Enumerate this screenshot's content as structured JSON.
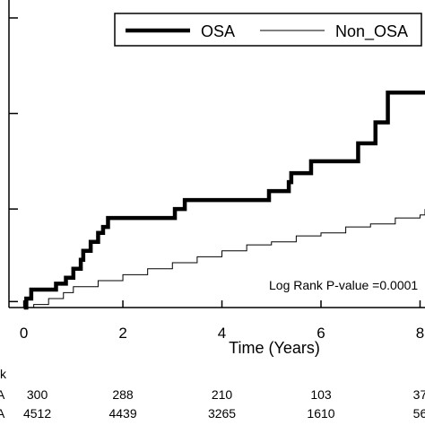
{
  "chart_data": {
    "type": "line",
    "title": "",
    "xlabel": "Time (Years)",
    "ylabel": "",
    "xlim": [
      -0.3,
      8.1
    ],
    "xticks": [
      0,
      2,
      4,
      6,
      8
    ],
    "ylim": [
      0,
      1
    ],
    "grid": false,
    "legend_position": "top-right",
    "annotation": "Log Rank P-value =0.0001",
    "series": [
      {
        "name": "OSA",
        "line_style": "thick",
        "color": "#000000",
        "steps": [
          [
            0.0,
            0.0
          ],
          [
            0.05,
            0.03
          ],
          [
            0.15,
            0.06
          ],
          [
            0.6,
            0.06
          ],
          [
            0.65,
            0.08
          ],
          [
            0.8,
            0.08
          ],
          [
            0.85,
            0.1
          ],
          [
            0.95,
            0.1
          ],
          [
            1.0,
            0.13
          ],
          [
            1.1,
            0.13
          ],
          [
            1.15,
            0.16
          ],
          [
            1.2,
            0.19
          ],
          [
            1.3,
            0.19
          ],
          [
            1.35,
            0.22
          ],
          [
            1.45,
            0.22
          ],
          [
            1.5,
            0.25
          ],
          [
            1.55,
            0.25
          ],
          [
            1.6,
            0.27
          ],
          [
            1.7,
            0.3
          ],
          [
            3.0,
            0.3
          ],
          [
            3.05,
            0.33
          ],
          [
            3.2,
            0.33
          ],
          [
            3.25,
            0.36
          ],
          [
            4.9,
            0.36
          ],
          [
            4.95,
            0.39
          ],
          [
            5.3,
            0.39
          ],
          [
            5.35,
            0.42
          ],
          [
            5.4,
            0.45
          ],
          [
            5.75,
            0.45
          ],
          [
            5.8,
            0.49
          ],
          [
            6.7,
            0.49
          ],
          [
            6.75,
            0.55
          ],
          [
            7.0,
            0.55
          ],
          [
            7.1,
            0.62
          ],
          [
            7.3,
            0.62
          ],
          [
            7.35,
            0.72
          ],
          [
            8.1,
            0.72
          ]
        ]
      },
      {
        "name": "Non_OSA",
        "line_style": "thin",
        "color": "#000000",
        "steps": [
          [
            0.0,
            0.0
          ],
          [
            0.2,
            0.01
          ],
          [
            0.5,
            0.03
          ],
          [
            0.8,
            0.05
          ],
          [
            1.0,
            0.07
          ],
          [
            1.5,
            0.09
          ],
          [
            2.0,
            0.11
          ],
          [
            2.5,
            0.13
          ],
          [
            3.0,
            0.15
          ],
          [
            3.5,
            0.17
          ],
          [
            4.0,
            0.19
          ],
          [
            4.5,
            0.21
          ],
          [
            5.0,
            0.22
          ],
          [
            5.5,
            0.24
          ],
          [
            6.0,
            0.25
          ],
          [
            6.5,
            0.27
          ],
          [
            7.0,
            0.28
          ],
          [
            7.5,
            0.3
          ],
          [
            8.0,
            0.31
          ],
          [
            8.1,
            0.33
          ]
        ]
      }
    ],
    "risk_table": {
      "header_label": "k",
      "rows": [
        {
          "label": "A",
          "values": [
            "300",
            "288",
            "210",
            "103",
            "37"
          ]
        },
        {
          "label": "A",
          "values": [
            "4512",
            "4439",
            "3265",
            "1610",
            "56"
          ]
        }
      ]
    }
  }
}
